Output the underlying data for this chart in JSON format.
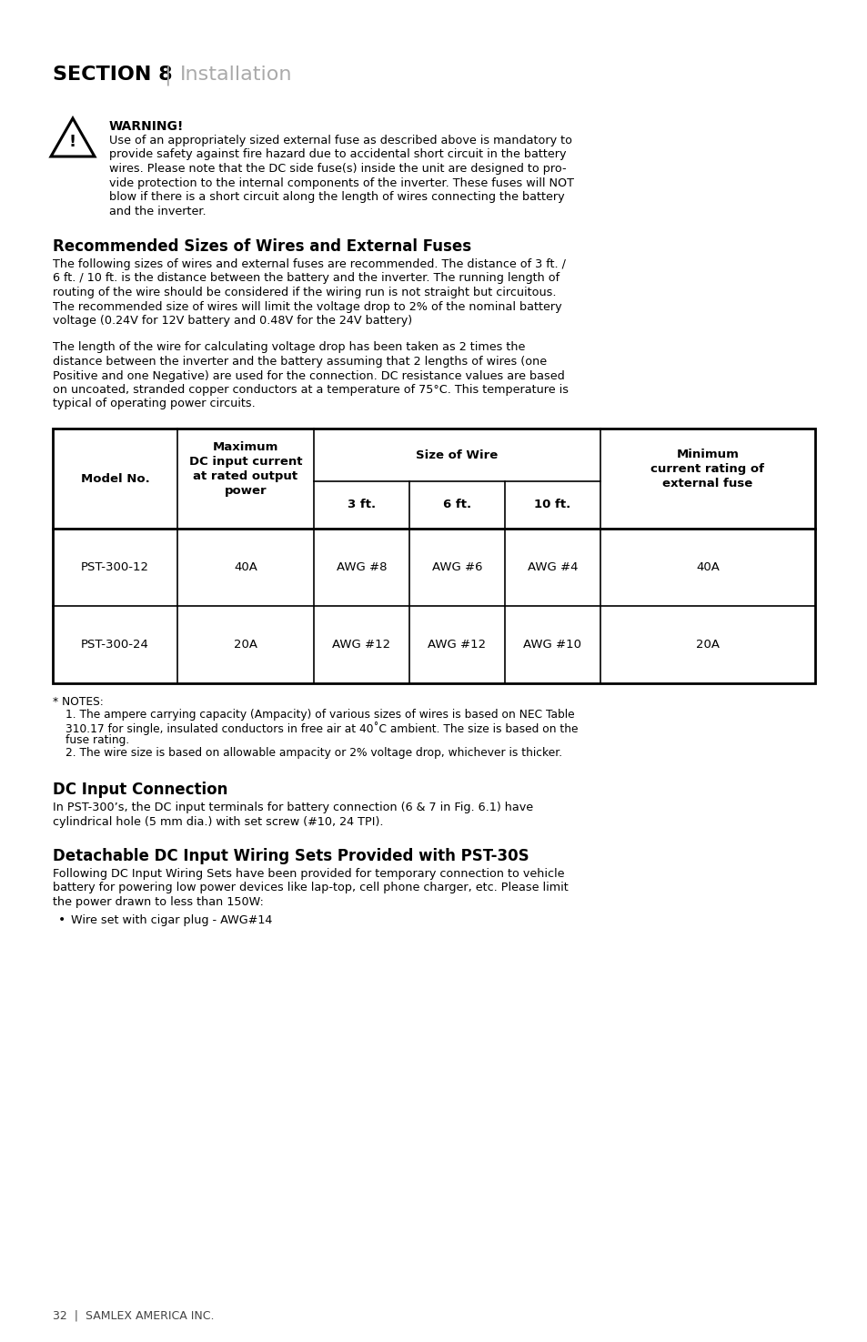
{
  "title_bold": "SECTION 8",
  "title_pipe": " | ",
  "title_light": "Installation",
  "warning_title": "WARNING!",
  "warning_lines": [
    "Use of an appropriately sized external fuse as described above is mandatory to",
    "provide safety against fire hazard due to accidental short circuit in the battery",
    "wires. Please note that the DC side fuse(s) inside the unit are designed to pro-",
    "vide protection to the internal components of the inverter. These fuses will NOT",
    "blow if there is a short circuit along the length of wires connecting the battery",
    "and the inverter."
  ],
  "section_title1": "Recommended Sizes of Wires and External Fuses",
  "body1_lines": [
    "The following sizes of wires and external fuses are recommended. The distance of 3 ft. /",
    "6 ft. / 10 ft. is the distance between the battery and the inverter. The running length of",
    "routing of the wire should be considered if the wiring run is not straight but circuitous.",
    "The recommended size of wires will limit the voltage drop to 2% of the nominal battery",
    "voltage (0.24V for 12V battery and 0.48V for the 24V battery)"
  ],
  "body2_lines": [
    "The length of the wire for calculating voltage drop has been taken as 2 times the",
    "distance between the inverter and the battery assuming that 2 lengths of wires (one",
    "Positive and one Negative) are used for the connection. DC resistance values are based",
    "on uncoated, stranded copper conductors at a temperature of 75°C. This temperature is",
    "typical of operating power circuits."
  ],
  "table_rows": [
    [
      "PST-300-12",
      "40A",
      "AWG #8",
      "AWG #6",
      "AWG #4",
      "40A"
    ],
    [
      "PST-300-24",
      "20A",
      "AWG #12",
      "AWG #12",
      "AWG #10",
      "20A"
    ]
  ],
  "notes_lines": [
    "1. The ampere carrying capacity (Ampacity) of various sizes of wires is based on NEC Table",
    "310.17 for single, insulated conductors in free air at 40˚C ambient. The size is based on the",
    "fuse rating.",
    "2. The wire size is based on allowable ampacity or 2% voltage drop, whichever is thicker."
  ],
  "section_title2": "DC Input Connection",
  "dc_lines": [
    "In PST-300’s, the DC input terminals for battery connection (6 & 7 in Fig. 6.1) have",
    "cylindrical hole (5 mm dia.) with set screw (#10, 24 TPI)."
  ],
  "section_title3": "Detachable DC Input Wiring Sets Provided with PST-30S",
  "det_lines": [
    "Following DC Input Wiring Sets have been provided for temporary connection to vehicle",
    "battery for powering low power devices like lap-top, cell phone charger, etc. Please limit",
    "the power drawn to less than 150W:"
  ],
  "bullet_item": "Wire set with cigar plug - AWG#14",
  "footer": "32  |  SAMLEX AMERICA INC.",
  "bg_color": "#ffffff",
  "text_color": "#000000"
}
